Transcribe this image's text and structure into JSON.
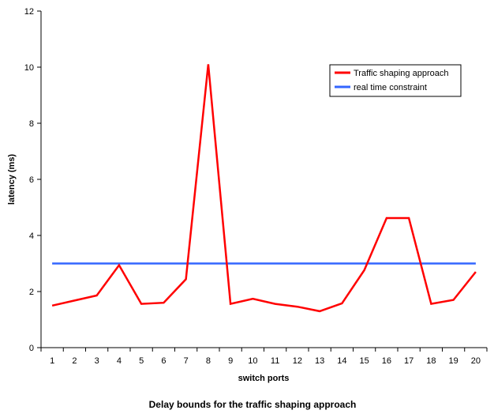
{
  "chart_data": {
    "type": "line",
    "title": "Delay bounds for the traffic shaping approach",
    "xlabel": "switch ports",
    "ylabel": "latency (ms)",
    "categories": [
      "1",
      "2",
      "3",
      "4",
      "5",
      "6",
      "7",
      "8",
      "9",
      "10",
      "11",
      "12",
      "13",
      "14",
      "15",
      "16",
      "17",
      "18",
      "19",
      "20"
    ],
    "y_ticks": [
      "0",
      "2",
      "4",
      "6",
      "8",
      "10",
      "12"
    ],
    "ylim": [
      0,
      12
    ],
    "grid": false,
    "legend_position": "top-right",
    "series": [
      {
        "name": "Traffic shaping approach",
        "color": "#ff0000",
        "values": [
          1.5,
          1.68,
          1.86,
          2.94,
          1.56,
          1.6,
          2.44,
          10.1,
          1.56,
          1.74,
          1.56,
          1.46,
          1.3,
          1.58,
          2.76,
          4.62,
          4.62,
          1.56,
          1.7,
          2.7
        ]
      },
      {
        "name": "real time constraint",
        "color": "#3366ff",
        "values": [
          3,
          3,
          3,
          3,
          3,
          3,
          3,
          3,
          3,
          3,
          3,
          3,
          3,
          3,
          3,
          3,
          3,
          3,
          3,
          3
        ]
      }
    ]
  }
}
